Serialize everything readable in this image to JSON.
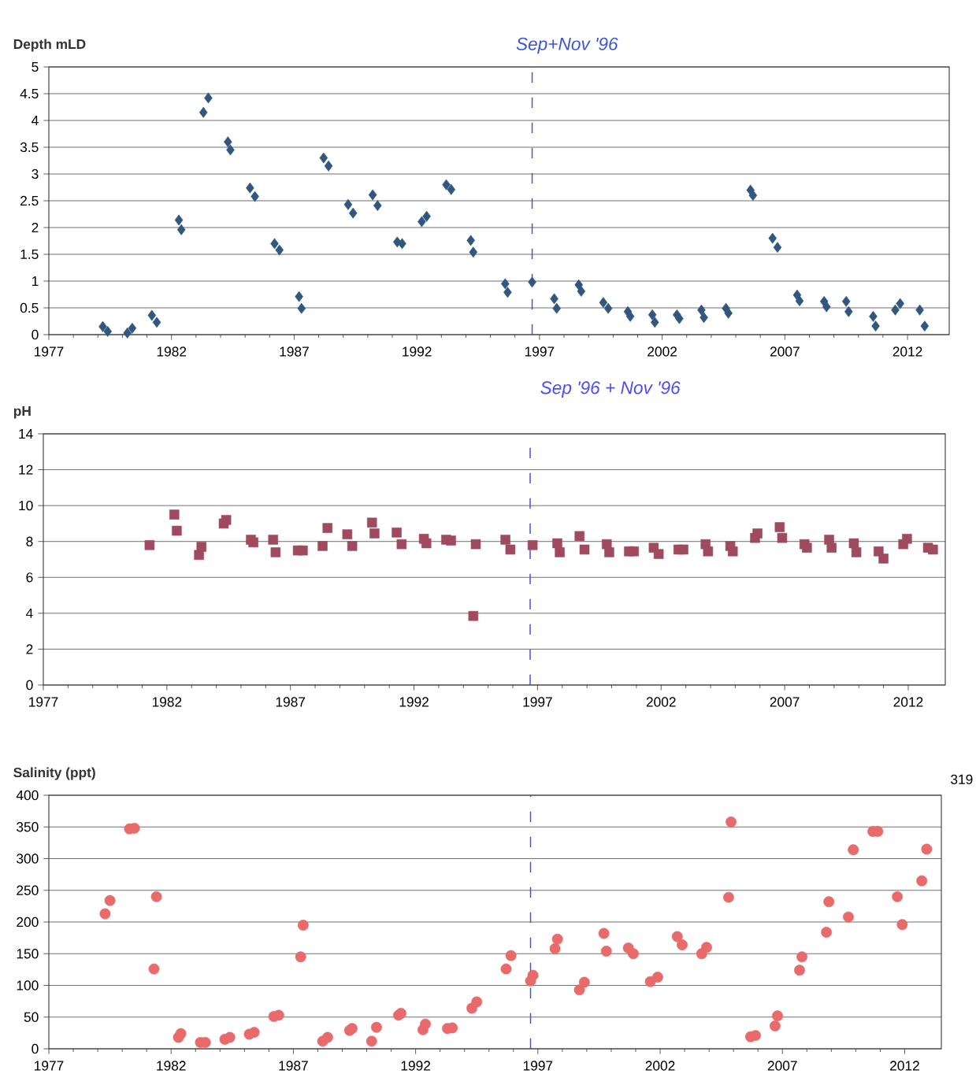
{
  "chart_data": [
    {
      "type": "scatter",
      "ylabel": "Depth mLD",
      "color": "#31577f",
      "marker": "diamond",
      "grid": "y",
      "x": [
        1979.2,
        1979.4,
        1980.2,
        1980.4,
        1981.2,
        1981.4,
        1982.3,
        1982.4,
        1983.3,
        1983.5,
        1984.3,
        1984.4,
        1985.2,
        1985.4,
        1986.2,
        1986.4,
        1987.2,
        1987.3,
        1988.2,
        1988.4,
        1989.2,
        1989.4,
        1990.2,
        1990.4,
        1991.2,
        1991.4,
        1992.2,
        1992.4,
        1993.2,
        1993.4,
        1994.2,
        1994.3,
        1995.6,
        1995.7,
        1996.7,
        1997.6,
        1997.7,
        1998.6,
        1998.7,
        1999.6,
        1999.8,
        2000.6,
        2000.7,
        2001.6,
        2001.7,
        2002.6,
        2002.7,
        2003.6,
        2003.7,
        2004.6,
        2004.7,
        2005.6,
        2005.7,
        2006.5,
        2006.7,
        2007.5,
        2007.6,
        2008.6,
        2008.7,
        2009.5,
        2009.6,
        2010.6,
        2010.7,
        2011.5,
        2011.7,
        2012.5,
        2012.7
      ],
      "values": [
        0.15,
        0.06,
        0.03,
        0.12,
        0.36,
        0.23,
        2.14,
        1.96,
        4.15,
        4.42,
        3.6,
        3.45,
        2.74,
        2.58,
        1.7,
        1.58,
        0.71,
        0.49,
        3.3,
        3.15,
        2.43,
        2.27,
        2.61,
        2.41,
        1.73,
        1.7,
        2.11,
        2.21,
        2.8,
        2.71,
        1.76,
        1.54,
        0.95,
        0.79,
        0.98,
        0.67,
        0.49,
        0.93,
        0.81,
        0.6,
        0.49,
        0.43,
        0.34,
        0.37,
        0.23,
        0.37,
        0.3,
        0.46,
        0.32,
        0.49,
        0.4,
        2.7,
        2.6,
        1.8,
        1.63,
        0.74,
        0.63,
        0.62,
        0.52,
        0.62,
        0.43,
        0.34,
        0.16,
        0.46,
        0.58,
        0.46,
        0.16
      ],
      "xlim": [
        1977,
        2013.7
      ],
      "ylim": [
        0,
        5
      ],
      "xticks": [
        1977,
        1982,
        1987,
        1992,
        1997,
        2002,
        2007,
        2012
      ],
      "yticks": [
        0,
        0.5,
        1,
        1.5,
        2,
        2.5,
        3,
        3.5,
        4,
        4.5,
        5
      ],
      "ref_lines": [
        {
          "axis": "x",
          "value": 1996.7,
          "label": "Sep+Nov '96",
          "color": "#3a55d8",
          "line_style": "dashed"
        }
      ],
      "annotations": [
        "Sep '96 + Nov '96"
      ]
    },
    {
      "type": "scatter",
      "ylabel": "pH",
      "color": "#a04a5f",
      "marker": "square",
      "grid": "y",
      "x": [
        1981.3,
        1982.3,
        1982.4,
        1983.3,
        1983.4,
        1984.3,
        1984.4,
        1985.4,
        1985.5,
        1986.3,
        1986.4,
        1987.3,
        1987.5,
        1988.3,
        1988.5,
        1989.3,
        1989.5,
        1990.3,
        1990.4,
        1991.3,
        1991.5,
        1992.4,
        1992.5,
        1993.3,
        1993.5,
        1994.4,
        1994.5,
        1995.7,
        1995.9,
        1996.8,
        1997.8,
        1997.9,
        1998.7,
        1998.9,
        1999.8,
        1999.9,
        2000.7,
        2000.9,
        2001.7,
        2001.9,
        2002.7,
        2002.9,
        2003.8,
        2003.9,
        2004.8,
        2004.9,
        2005.8,
        2005.9,
        2006.8,
        2006.9,
        2007.8,
        2007.9,
        2008.8,
        2008.9,
        2009.8,
        2009.9,
        2010.8,
        2011.0,
        2011.8,
        2011.95,
        2012.8,
        2013.0
      ],
      "values": [
        7.8,
        9.5,
        8.6,
        7.25,
        7.7,
        9.0,
        9.2,
        8.1,
        7.95,
        8.1,
        7.4,
        7.5,
        7.5,
        7.75,
        8.75,
        8.4,
        7.75,
        9.05,
        8.45,
        8.5,
        7.85,
        8.15,
        7.9,
        8.1,
        8.05,
        3.85,
        7.85,
        8.1,
        7.55,
        7.8,
        7.9,
        7.4,
        8.3,
        7.55,
        7.85,
        7.4,
        7.45,
        7.45,
        7.65,
        7.3,
        7.55,
        7.55,
        7.85,
        7.45,
        7.75,
        7.45,
        8.2,
        8.45,
        8.8,
        8.2,
        7.85,
        7.65,
        8.1,
        7.65,
        7.9,
        7.4,
        7.45,
        7.05,
        7.85,
        8.15,
        7.65,
        7.55
      ],
      "xlim": [
        1977,
        2013.5
      ],
      "ylim": [
        0,
        14
      ],
      "xticks": [
        1977,
        1982,
        1987,
        1992,
        1997,
        2002,
        2007,
        2012
      ],
      "yticks": [
        0,
        2,
        4,
        6,
        8,
        10,
        12,
        14
      ],
      "ref_lines": [
        {
          "axis": "x",
          "value": 1996.7,
          "color": "#3a55d8",
          "line_style": "dashed"
        }
      ]
    },
    {
      "type": "scatter",
      "ylabel": "Salinity (ppt)",
      "color": "#e86a6a",
      "marker": "circle",
      "grid": "y",
      "x": [
        1979.3,
        1979.5,
        1980.3,
        1980.5,
        1981.3,
        1981.4,
        1982.3,
        1982.4,
        1983.2,
        1983.4,
        1984.2,
        1984.4,
        1985.2,
        1985.4,
        1986.2,
        1986.4,
        1987.3,
        1987.4,
        1988.2,
        1988.4,
        1989.3,
        1989.4,
        1990.2,
        1990.4,
        1991.3,
        1991.4,
        1992.3,
        1992.4,
        1993.3,
        1993.5,
        1994.3,
        1994.5,
        1995.7,
        1995.9,
        1996.7,
        1996.8,
        1997.7,
        1997.8,
        1998.7,
        1998.9,
        1999.7,
        1999.8,
        2000.7,
        2000.9,
        2001.6,
        2001.9,
        2002.7,
        2002.9,
        2003.7,
        2003.9,
        2004.8,
        2004.9,
        2005.7,
        2005.9,
        2006.7,
        2006.8,
        2007.7,
        2007.8,
        2008.8,
        2008.9,
        2009.7,
        2009.9,
        2010.7,
        2010.9,
        2011.7,
        2011.9,
        2012.7,
        2012.9
      ],
      "values": [
        213,
        234,
        347,
        348,
        126,
        240,
        18,
        24,
        10,
        10,
        15,
        18,
        23,
        26,
        51,
        53,
        145,
        195,
        12,
        18,
        29,
        32,
        12,
        34,
        53,
        56,
        30,
        39,
        32,
        33,
        64,
        74,
        126,
        147,
        107,
        116,
        158,
        173,
        93,
        105,
        182,
        154,
        159,
        150,
        106,
        113,
        177,
        164,
        150,
        160,
        239,
        358,
        19,
        21,
        36,
        52,
        124,
        145,
        184,
        232,
        208,
        314,
        343,
        343,
        240,
        196,
        265,
        315
      ],
      "xlim": [
        1977,
        2013.5
      ],
      "ylim": [
        0,
        400
      ],
      "xticks": [
        1977,
        1982,
        1987,
        1992,
        1997,
        2002,
        2007,
        2012
      ],
      "yticks": [
        0,
        50,
        100,
        150,
        200,
        250,
        300,
        350,
        400
      ],
      "ref_lines": [
        {
          "axis": "x",
          "value": 1996.7,
          "color": "#3a55d8",
          "line_style": "dashed"
        }
      ],
      "annotations": [
        "319"
      ]
    }
  ]
}
